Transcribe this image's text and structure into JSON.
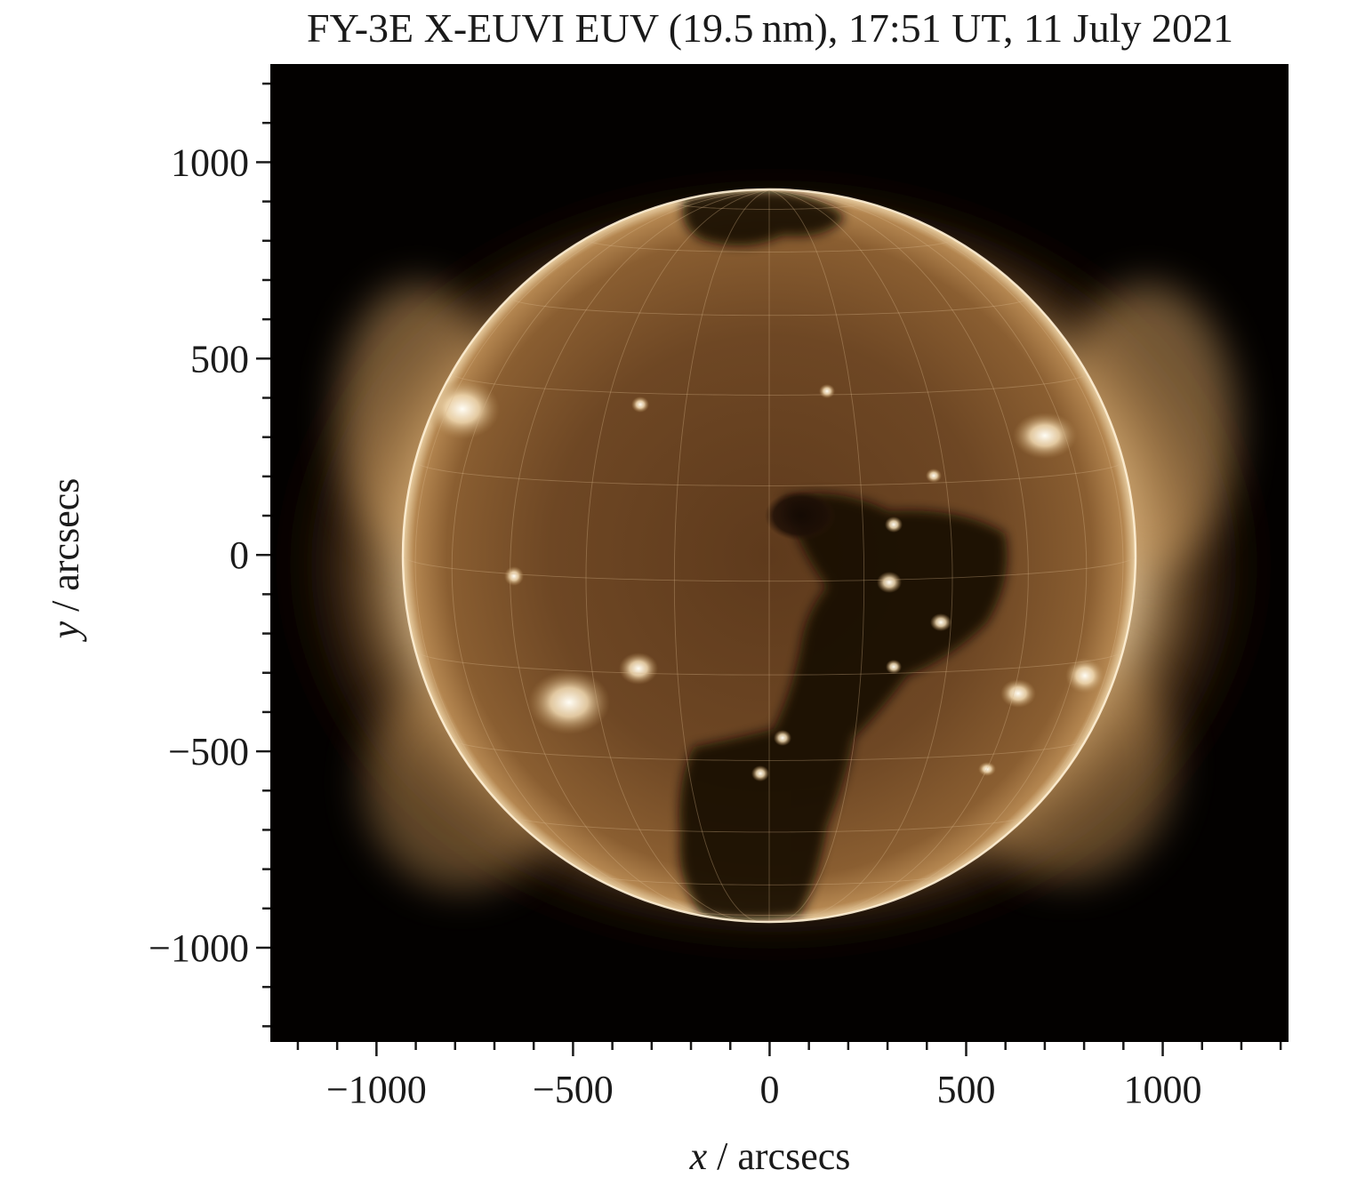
{
  "title": "FY-3E X-EUVI EUV (19.5 nm), 17:51 UT, 11 July 2021",
  "chart_data": {
    "type": "image",
    "title": "FY-3E X-EUVI EUV (19.5 nm), 17:51 UT, 11 July 2021",
    "xlabel_var": "x",
    "xlabel_unit": " / arcsecs",
    "ylabel_var": "y",
    "ylabel_unit": " / arcsecs",
    "x_ticks": [
      {
        "value": -1000,
        "label": "−1000"
      },
      {
        "value": -500,
        "label": "−500"
      },
      {
        "value": 0,
        "label": "0"
      },
      {
        "value": 500,
        "label": "500"
      },
      {
        "value": 1000,
        "label": "1000"
      }
    ],
    "y_ticks": [
      {
        "value": 1000,
        "label": "1000"
      },
      {
        "value": 500,
        "label": "500"
      },
      {
        "value": 0,
        "label": "0"
      },
      {
        "value": -500,
        "label": "−500"
      },
      {
        "value": -1000,
        "label": "−1000"
      }
    ],
    "minor_tick_step": 100,
    "xlim": [
      -1270,
      1320
    ],
    "ylim": [
      -1240,
      1250
    ],
    "solar_disk_radius_arcsec": 945,
    "colormap": [
      "#000000",
      "#3b1f0c",
      "#6b4522",
      "#a3743d",
      "#e8caa0",
      "#fffaf0"
    ],
    "grid": true
  }
}
